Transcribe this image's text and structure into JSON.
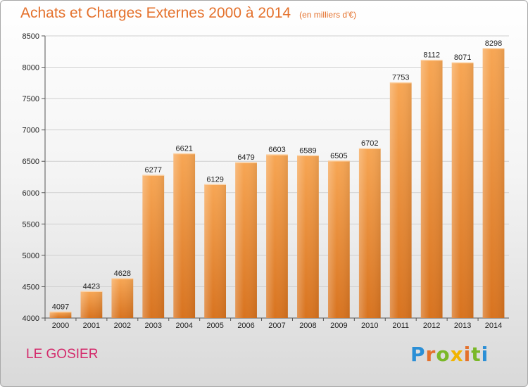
{
  "header": {
    "title": "Achats et Charges Externes 2000 à 2014",
    "unit": "(en milliers d'€)"
  },
  "footer": {
    "commune": "LE GOSIER",
    "logo": "Proxiti",
    "logo_letter_colors": [
      "#2b8fd6",
      "#e4712c",
      "#7ab828",
      "#f2b400",
      "#e4712c",
      "#7ab828",
      "#2b8fd6"
    ]
  },
  "colors": {
    "bar_top": "#f7a654",
    "bar_bottom": "#d8731f",
    "title": "#e4712c",
    "commune": "#d42a6b"
  },
  "chart_data": {
    "type": "bar",
    "title": "Achats et Charges Externes 2000 à 2014",
    "subtitle": "(en milliers d'€)",
    "xlabel": "",
    "ylabel": "",
    "categories": [
      "2000",
      "2001",
      "2002",
      "2003",
      "2004",
      "2005",
      "2006",
      "2007",
      "2008",
      "2009",
      "2010",
      "2011",
      "2012",
      "2013",
      "2014"
    ],
    "values": [
      4097,
      4423,
      4628,
      6277,
      6621,
      6129,
      6479,
      6603,
      6589,
      6505,
      6702,
      7753,
      8112,
      8071,
      8298
    ],
    "ylim": [
      4000,
      8500
    ],
    "yticks": [
      4000,
      4500,
      5000,
      5500,
      6000,
      6500,
      7000,
      7500,
      8000,
      8500
    ],
    "grid": true
  }
}
